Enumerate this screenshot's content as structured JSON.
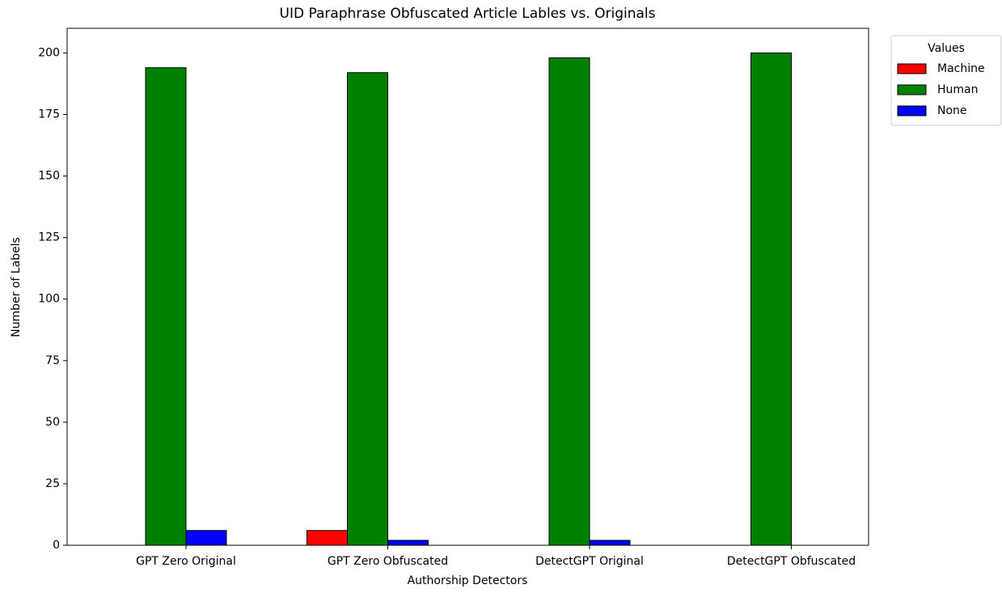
{
  "chart_data": {
    "type": "bar",
    "title": "UID Paraphrase Obfuscated Article Lables vs. Originals",
    "x_label": "Authorship Detectors",
    "y_label": "Number of Labels",
    "categories": [
      "GPT Zero Original",
      "GPT Zero Obfuscated",
      "DetectGPT Original",
      "DetectGPT Obfuscated"
    ],
    "series": [
      {
        "name": "Machine",
        "color": "#ff0000",
        "values": [
          0,
          6,
          0,
          0
        ]
      },
      {
        "name": "Human",
        "color": "#008000",
        "values": [
          194,
          192,
          198,
          200
        ]
      },
      {
        "name": "None",
        "color": "#0000ff",
        "values": [
          6,
          2,
          2,
          0
        ]
      }
    ],
    "ylim": [
      0,
      210
    ],
    "yticks": [
      0,
      25,
      50,
      75,
      100,
      125,
      150,
      175,
      200
    ],
    "legend_title": "Values",
    "legend": "outside-upper-right"
  }
}
